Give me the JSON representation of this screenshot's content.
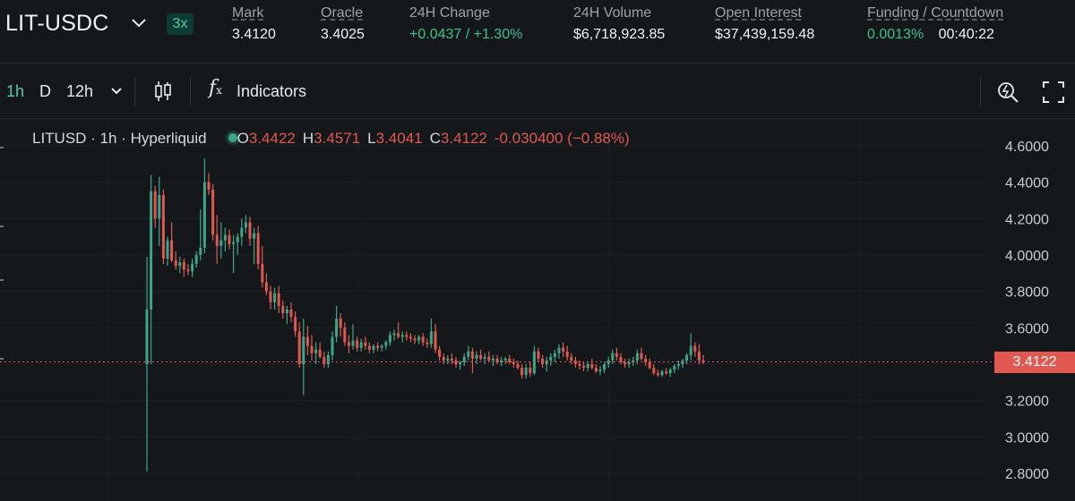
{
  "header": {
    "symbol": "LIT-USDC",
    "leverage": "3x",
    "stats": [
      {
        "label": "Mark",
        "value": "3.4120",
        "underline": true
      },
      {
        "label": "Oracle",
        "value": "3.4025",
        "underline": true
      },
      {
        "label": "24H Change",
        "value": "+0.0437 / +1.30%",
        "underline": false
      },
      {
        "label": "24H Volume",
        "value": "$6,718,923.85",
        "underline": false
      },
      {
        "label": "Open Interest",
        "value": "$37,439,159.48",
        "underline": true
      },
      {
        "label": "Funding / Countdown",
        "value": "0.0013%",
        "countdown": "00:40:22",
        "underline": true
      }
    ]
  },
  "toolbar": {
    "interval_1h": "1h",
    "interval_d": "D",
    "interval_12h": "12h",
    "indicators_label": "Indicators"
  },
  "legend": {
    "title": "LITUSD · 1h · Hyperliquid",
    "o_key": "O",
    "o_val": "3.4422",
    "h_key": "H",
    "h_val": "3.4571",
    "l_key": "L",
    "l_val": "3.4041",
    "c_key": "C",
    "c_val": "3.4122",
    "change": "-0.030400 (−0.88%)"
  },
  "colors": {
    "up": "#3da58a",
    "down": "#e0584f",
    "accent": "#57c7a6"
  },
  "current_price": "3.4122",
  "chart_data": {
    "type": "candlestick",
    "ylim": [
      2.72,
      4.68
    ],
    "yticks": [
      "4.6000",
      "4.4000",
      "4.2000",
      "4.0000",
      "3.8000",
      "3.6000",
      "3.4000",
      "3.2000",
      "3.0000",
      "2.8000"
    ],
    "current": 3.4122,
    "candles": [
      [
        3.4,
        3.99,
        2.81,
        3.7
      ],
      [
        3.7,
        4.44,
        3.4,
        4.35
      ],
      [
        4.35,
        4.38,
        4.15,
        4.2
      ],
      [
        4.2,
        4.43,
        4.05,
        4.33
      ],
      [
        4.33,
        4.36,
        3.95,
        3.98
      ],
      [
        3.98,
        4.1,
        3.94,
        4.08
      ],
      [
        4.08,
        4.18,
        3.96,
        3.97
      ],
      [
        3.97,
        4.02,
        3.92,
        3.94
      ],
      [
        3.94,
        3.99,
        3.9,
        3.96
      ],
      [
        3.96,
        3.98,
        3.88,
        3.92
      ],
      [
        3.92,
        3.95,
        3.89,
        3.91
      ],
      [
        3.91,
        3.98,
        3.88,
        3.95
      ],
      [
        3.95,
        4.02,
        3.93,
        4.0
      ],
      [
        4.0,
        4.25,
        3.97,
        4.04
      ],
      [
        4.04,
        4.53,
        4.01,
        4.4
      ],
      [
        4.4,
        4.45,
        4.33,
        4.36
      ],
      [
        4.36,
        4.39,
        4.08,
        4.11
      ],
      [
        4.11,
        4.22,
        3.95,
        4.05
      ],
      [
        4.05,
        4.18,
        3.98,
        4.08
      ],
      [
        4.08,
        4.15,
        4.02,
        4.11
      ],
      [
        4.11,
        4.14,
        4.03,
        4.06
      ],
      [
        4.06,
        4.11,
        3.9,
        4.07
      ],
      [
        4.07,
        4.12,
        4.0,
        4.1
      ],
      [
        4.1,
        4.2,
        4.05,
        4.15
      ],
      [
        4.15,
        4.22,
        4.12,
        4.18
      ],
      [
        4.18,
        4.21,
        4.05,
        4.09
      ],
      [
        4.09,
        4.15,
        3.95,
        4.12
      ],
      [
        4.12,
        4.16,
        3.92,
        3.95
      ],
      [
        3.95,
        4.05,
        3.82,
        3.85
      ],
      [
        3.85,
        3.9,
        3.78,
        3.8
      ],
      [
        3.8,
        3.83,
        3.7,
        3.74
      ],
      [
        3.74,
        3.82,
        3.7,
        3.79
      ],
      [
        3.79,
        3.83,
        3.68,
        3.72
      ],
      [
        3.72,
        3.75,
        3.65,
        3.68
      ],
      [
        3.68,
        3.72,
        3.62,
        3.7
      ],
      [
        3.7,
        3.74,
        3.63,
        3.66
      ],
      [
        3.66,
        3.69,
        3.55,
        3.58
      ],
      [
        3.58,
        3.63,
        3.38,
        3.4
      ],
      [
        3.4,
        3.65,
        3.23,
        3.55
      ],
      [
        3.55,
        3.61,
        3.45,
        3.5
      ],
      [
        3.5,
        3.56,
        3.42,
        3.46
      ],
      [
        3.46,
        3.52,
        3.4,
        3.48
      ],
      [
        3.48,
        3.52,
        3.43,
        3.44
      ],
      [
        3.44,
        3.47,
        3.38,
        3.4
      ],
      [
        3.4,
        3.47,
        3.38,
        3.45
      ],
      [
        3.45,
        3.58,
        3.42,
        3.55
      ],
      [
        3.55,
        3.72,
        3.52,
        3.65
      ],
      [
        3.65,
        3.68,
        3.55,
        3.6
      ],
      [
        3.6,
        3.63,
        3.5,
        3.52
      ],
      [
        3.52,
        3.56,
        3.46,
        3.5
      ],
      [
        3.5,
        3.62,
        3.48,
        3.53
      ],
      [
        3.53,
        3.55,
        3.47,
        3.49
      ],
      [
        3.49,
        3.54,
        3.47,
        3.52
      ],
      [
        3.52,
        3.55,
        3.48,
        3.5
      ],
      [
        3.5,
        3.52,
        3.46,
        3.48
      ],
      [
        3.48,
        3.51,
        3.46,
        3.5
      ],
      [
        3.5,
        3.52,
        3.47,
        3.49
      ],
      [
        3.49,
        3.51,
        3.47,
        3.5
      ],
      [
        3.5,
        3.53,
        3.48,
        3.52
      ],
      [
        3.52,
        3.58,
        3.5,
        3.56
      ],
      [
        3.56,
        3.59,
        3.53,
        3.57
      ],
      [
        3.57,
        3.63,
        3.54,
        3.55
      ],
      [
        3.55,
        3.58,
        3.52,
        3.56
      ],
      [
        3.56,
        3.58,
        3.53,
        3.55
      ],
      [
        3.55,
        3.57,
        3.52,
        3.54
      ],
      [
        3.54,
        3.56,
        3.51,
        3.53
      ],
      [
        3.53,
        3.56,
        3.51,
        3.55
      ],
      [
        3.55,
        3.57,
        3.5,
        3.52
      ],
      [
        3.52,
        3.54,
        3.49,
        3.51
      ],
      [
        3.51,
        3.65,
        3.49,
        3.58
      ],
      [
        3.58,
        3.62,
        3.46,
        3.48
      ],
      [
        3.48,
        3.5,
        3.42,
        3.44
      ],
      [
        3.44,
        3.46,
        3.4,
        3.42
      ],
      [
        3.42,
        3.45,
        3.4,
        3.43
      ],
      [
        3.43,
        3.46,
        3.4,
        3.42
      ],
      [
        3.42,
        3.44,
        3.38,
        3.4
      ],
      [
        3.4,
        3.42,
        3.37,
        3.41
      ],
      [
        3.41,
        3.46,
        3.39,
        3.44
      ],
      [
        3.44,
        3.5,
        3.42,
        3.47
      ],
      [
        3.47,
        3.49,
        3.35,
        3.43
      ],
      [
        3.43,
        3.47,
        3.4,
        3.45
      ],
      [
        3.45,
        3.48,
        3.42,
        3.43
      ],
      [
        3.43,
        3.46,
        3.4,
        3.44
      ],
      [
        3.44,
        3.47,
        3.41,
        3.42
      ],
      [
        3.42,
        3.45,
        3.39,
        3.43
      ],
      [
        3.43,
        3.45,
        3.4,
        3.41
      ],
      [
        3.41,
        3.44,
        3.39,
        3.42
      ],
      [
        3.42,
        3.44,
        3.4,
        3.43
      ],
      [
        3.43,
        3.45,
        3.4,
        3.41
      ],
      [
        3.41,
        3.43,
        3.38,
        3.4
      ],
      [
        3.4,
        3.42,
        3.37,
        3.38
      ],
      [
        3.38,
        3.4,
        3.32,
        3.34
      ],
      [
        3.34,
        3.4,
        3.32,
        3.38
      ],
      [
        3.38,
        3.41,
        3.33,
        3.35
      ],
      [
        3.35,
        3.5,
        3.34,
        3.47
      ],
      [
        3.47,
        3.49,
        3.41,
        3.43
      ],
      [
        3.43,
        3.45,
        3.38,
        3.4
      ],
      [
        3.4,
        3.44,
        3.36,
        3.42
      ],
      [
        3.42,
        3.46,
        3.39,
        3.44
      ],
      [
        3.44,
        3.48,
        3.41,
        3.46
      ],
      [
        3.46,
        3.51,
        3.43,
        3.49
      ],
      [
        3.49,
        3.52,
        3.44,
        3.47
      ],
      [
        3.47,
        3.5,
        3.42,
        3.44
      ],
      [
        3.44,
        3.46,
        3.4,
        3.42
      ],
      [
        3.42,
        3.44,
        3.38,
        3.4
      ],
      [
        3.4,
        3.42,
        3.37,
        3.39
      ],
      [
        3.39,
        3.41,
        3.36,
        3.38
      ],
      [
        3.38,
        3.41,
        3.36,
        3.4
      ],
      [
        3.4,
        3.43,
        3.37,
        3.38
      ],
      [
        3.38,
        3.4,
        3.35,
        3.36
      ],
      [
        3.36,
        3.39,
        3.34,
        3.37
      ],
      [
        3.37,
        3.41,
        3.35,
        3.4
      ],
      [
        3.4,
        3.44,
        3.38,
        3.42
      ],
      [
        3.42,
        3.48,
        3.4,
        3.46
      ],
      [
        3.46,
        3.49,
        3.42,
        3.44
      ],
      [
        3.44,
        3.46,
        3.4,
        3.41
      ],
      [
        3.41,
        3.43,
        3.38,
        3.4
      ],
      [
        3.4,
        3.43,
        3.38,
        3.41
      ],
      [
        3.41,
        3.44,
        3.39,
        3.42
      ],
      [
        3.42,
        3.48,
        3.4,
        3.46
      ],
      [
        3.46,
        3.49,
        3.42,
        3.43
      ],
      [
        3.43,
        3.45,
        3.39,
        3.41
      ],
      [
        3.41,
        3.43,
        3.37,
        3.38
      ],
      [
        3.38,
        3.4,
        3.34,
        3.35
      ],
      [
        3.35,
        3.37,
        3.33,
        3.34
      ],
      [
        3.34,
        3.37,
        3.33,
        3.36
      ],
      [
        3.36,
        3.38,
        3.34,
        3.35
      ],
      [
        3.35,
        3.38,
        3.33,
        3.37
      ],
      [
        3.37,
        3.4,
        3.35,
        3.39
      ],
      [
        3.39,
        3.42,
        3.37,
        3.4
      ],
      [
        3.4,
        3.43,
        3.38,
        3.42
      ],
      [
        3.42,
        3.46,
        3.4,
        3.45
      ],
      [
        3.45,
        3.57,
        3.42,
        3.5
      ],
      [
        3.5,
        3.52,
        3.44,
        3.47
      ],
      [
        3.47,
        3.51,
        3.4,
        3.42
      ],
      [
        3.42,
        3.45,
        3.4,
        3.41
      ]
    ]
  }
}
